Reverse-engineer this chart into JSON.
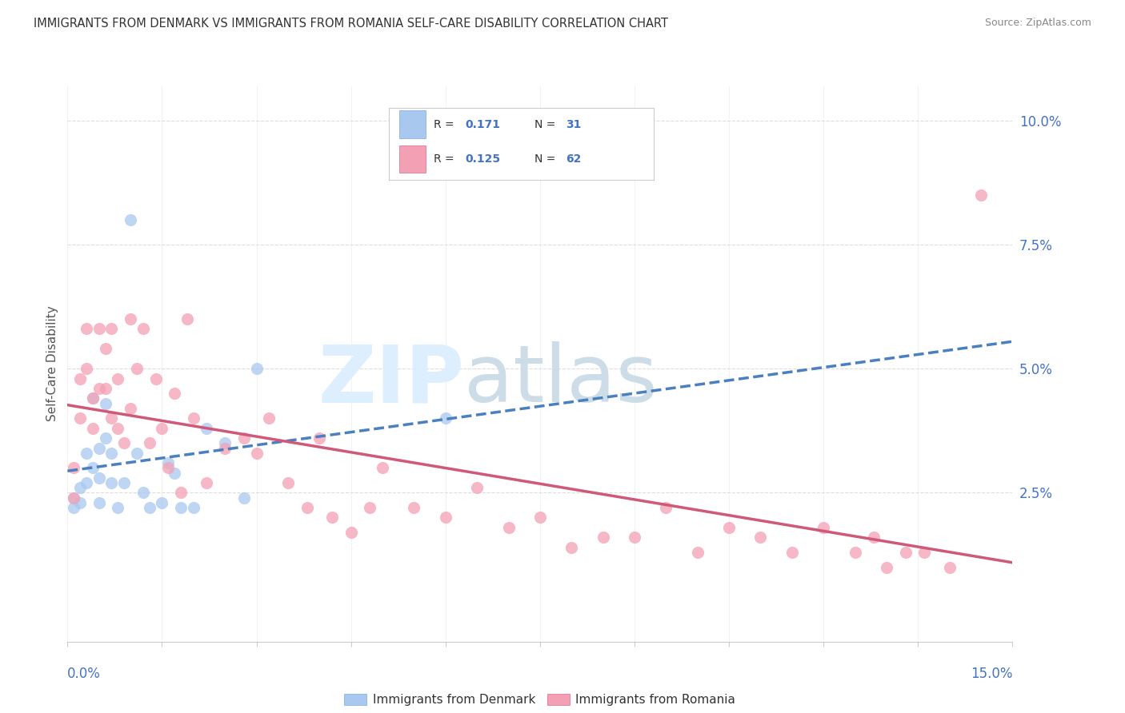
{
  "title": "IMMIGRANTS FROM DENMARK VS IMMIGRANTS FROM ROMANIA SELF-CARE DISABILITY CORRELATION CHART",
  "source": "Source: ZipAtlas.com",
  "ylabel": "Self-Care Disability",
  "xlim": [
    0.0,
    0.15
  ],
  "ylim": [
    -0.005,
    0.107
  ],
  "ytick_vals": [
    0.025,
    0.05,
    0.075,
    0.1
  ],
  "n_xticks": 11,
  "denmark_R": 0.171,
  "denmark_N": 31,
  "romania_R": 0.125,
  "romania_N": 62,
  "denmark_color": "#a8c8f0",
  "denmark_edge_color": "#7aacde",
  "romania_color": "#f4a0b4",
  "romania_edge_color": "#e06888",
  "denmark_line_color": "#4a7fc0",
  "romania_line_color": "#d05878",
  "legend_label_denmark": "Immigrants from Denmark",
  "legend_label_romania": "Immigrants from Romania",
  "denmark_x": [
    0.001,
    0.001,
    0.002,
    0.002,
    0.003,
    0.003,
    0.004,
    0.004,
    0.005,
    0.005,
    0.005,
    0.006,
    0.006,
    0.007,
    0.007,
    0.008,
    0.009,
    0.01,
    0.011,
    0.012,
    0.013,
    0.015,
    0.016,
    0.017,
    0.018,
    0.02,
    0.022,
    0.025,
    0.028,
    0.03,
    0.06
  ],
  "denmark_y": [
    0.024,
    0.022,
    0.026,
    0.023,
    0.033,
    0.027,
    0.044,
    0.03,
    0.034,
    0.028,
    0.023,
    0.043,
    0.036,
    0.033,
    0.027,
    0.022,
    0.027,
    0.08,
    0.033,
    0.025,
    0.022,
    0.023,
    0.031,
    0.029,
    0.022,
    0.022,
    0.038,
    0.035,
    0.024,
    0.05,
    0.04
  ],
  "romania_x": [
    0.001,
    0.001,
    0.002,
    0.002,
    0.003,
    0.003,
    0.004,
    0.004,
    0.005,
    0.005,
    0.006,
    0.006,
    0.007,
    0.007,
    0.008,
    0.008,
    0.009,
    0.01,
    0.01,
    0.011,
    0.012,
    0.013,
    0.014,
    0.015,
    0.016,
    0.017,
    0.018,
    0.019,
    0.02,
    0.022,
    0.025,
    0.028,
    0.03,
    0.032,
    0.035,
    0.038,
    0.04,
    0.042,
    0.045,
    0.048,
    0.05,
    0.055,
    0.06,
    0.065,
    0.07,
    0.075,
    0.08,
    0.085,
    0.09,
    0.095,
    0.1,
    0.105,
    0.11,
    0.115,
    0.12,
    0.125,
    0.128,
    0.13,
    0.133,
    0.136,
    0.14,
    0.145
  ],
  "romania_y": [
    0.03,
    0.024,
    0.048,
    0.04,
    0.058,
    0.05,
    0.044,
    0.038,
    0.058,
    0.046,
    0.054,
    0.046,
    0.058,
    0.04,
    0.048,
    0.038,
    0.035,
    0.06,
    0.042,
    0.05,
    0.058,
    0.035,
    0.048,
    0.038,
    0.03,
    0.045,
    0.025,
    0.06,
    0.04,
    0.027,
    0.034,
    0.036,
    0.033,
    0.04,
    0.027,
    0.022,
    0.036,
    0.02,
    0.017,
    0.022,
    0.03,
    0.022,
    0.02,
    0.026,
    0.018,
    0.02,
    0.014,
    0.016,
    0.016,
    0.022,
    0.013,
    0.018,
    0.016,
    0.013,
    0.018,
    0.013,
    0.016,
    0.01,
    0.013,
    0.013,
    0.01,
    0.085
  ],
  "watermark_zip_color": "#d8e8f0",
  "watermark_atlas_color": "#c8d8e8"
}
